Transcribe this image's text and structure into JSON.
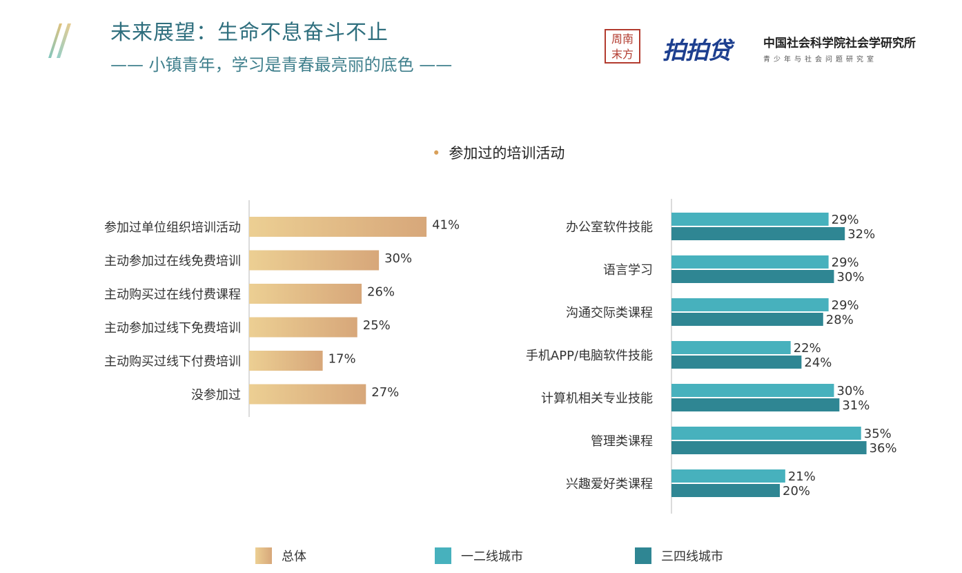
{
  "header": {
    "title": "未来展望：生命不息奋斗不止",
    "subtitle": "—— 小镇青年，学习是青春最亮丽的底色 ——"
  },
  "logos": {
    "seal": "周·南 末·方",
    "ppd": "拍拍贷",
    "cass_line1": "中国社会科学院社会学研究所",
    "cass_line2": "青少年与社会问题研究室"
  },
  "colors": {
    "overall_start": "#eccf93",
    "overall_end": "#d7a77a",
    "tier12": "#47b1bd",
    "tier34": "#2f8693",
    "title": "#2f6f7e"
  },
  "chart_data": [
    {
      "type": "bar",
      "orientation": "horizontal",
      "title": "参加过的培训活动",
      "categories": [
        "参加过单位组织培训活动",
        "主动参加过在线免费培训",
        "主动购买过在线付费课程",
        "主动参加过线下免费培训",
        "主动购买过线下付费培训",
        "没参加过"
      ],
      "series": [
        {
          "name": "总体",
          "values": [
            41,
            30,
            26,
            25,
            17,
            27
          ]
        }
      ],
      "value_format": "%"
    },
    {
      "type": "bar",
      "orientation": "horizontal",
      "categories": [
        "办公室软件技能",
        "语言学习",
        "沟通交际类课程",
        "手机APP/电脑软件技能",
        "计算机相关专业技能",
        "管理类课程",
        "兴趣爱好类课程"
      ],
      "series": [
        {
          "name": "一二线城市",
          "values": [
            29,
            29,
            29,
            22,
            30,
            35,
            21
          ]
        },
        {
          "name": "三四线城市",
          "values": [
            32,
            30,
            28,
            24,
            31,
            36,
            20
          ]
        }
      ],
      "value_format": "%"
    }
  ],
  "legend": [
    "总体",
    "一二线城市",
    "三四线城市"
  ]
}
